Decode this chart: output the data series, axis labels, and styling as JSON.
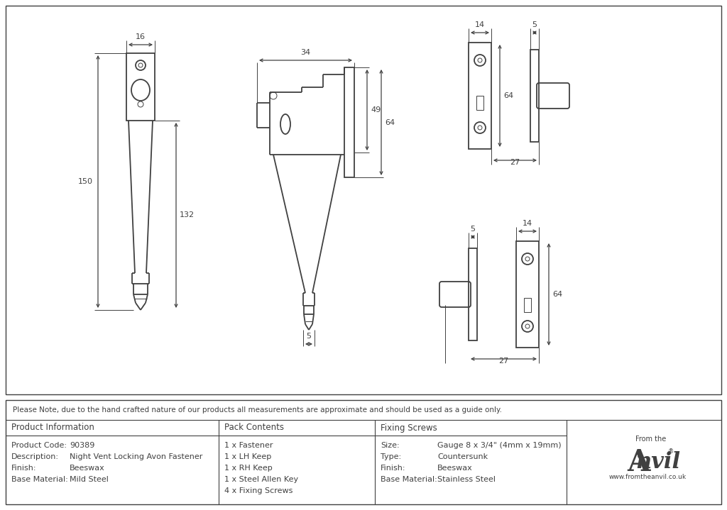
{
  "bg_color": "#ffffff",
  "line_color": "#404040",
  "note_text": "Please Note, due to the hand crafted nature of our products all measurements are approximate and should be used as a guide only.",
  "product_info_keys": [
    "Product Code:",
    "Description:",
    "Finish:",
    "Base Material:"
  ],
  "product_info_vals": [
    "90389",
    "Night Vent Locking Avon Fastener",
    "Beeswax",
    "Mild Steel"
  ],
  "pack_contents_header": "Pack Contents",
  "pack_contents_items": [
    "1 x Fastener",
    "1 x LH Keep",
    "1 x RH Keep",
    "1 x Steel Allen Key",
    "4 x Fixing Screws"
  ],
  "fixing_screws_header": "Fixing Screws",
  "fixing_screws_keys": [
    "Size:",
    "Type:",
    "Finish:",
    "Base Material:"
  ],
  "fixing_screws_vals": [
    "Gauge 8 x 3/4\" (4mm x 19mm)",
    "Countersunk",
    "Beeswax",
    "Stainless Steel"
  ],
  "product_info_header": "Product Information",
  "dims": {
    "d16": "16",
    "d150": "150",
    "d132": "132",
    "d34": "34",
    "d49": "49",
    "d64a": "64",
    "d5a": "5",
    "d14b": "14",
    "d5b": "5",
    "d64b": "64",
    "d27b": "27",
    "d5c": "5",
    "d14c": "14",
    "d64c": "64",
    "d27c": "27"
  }
}
